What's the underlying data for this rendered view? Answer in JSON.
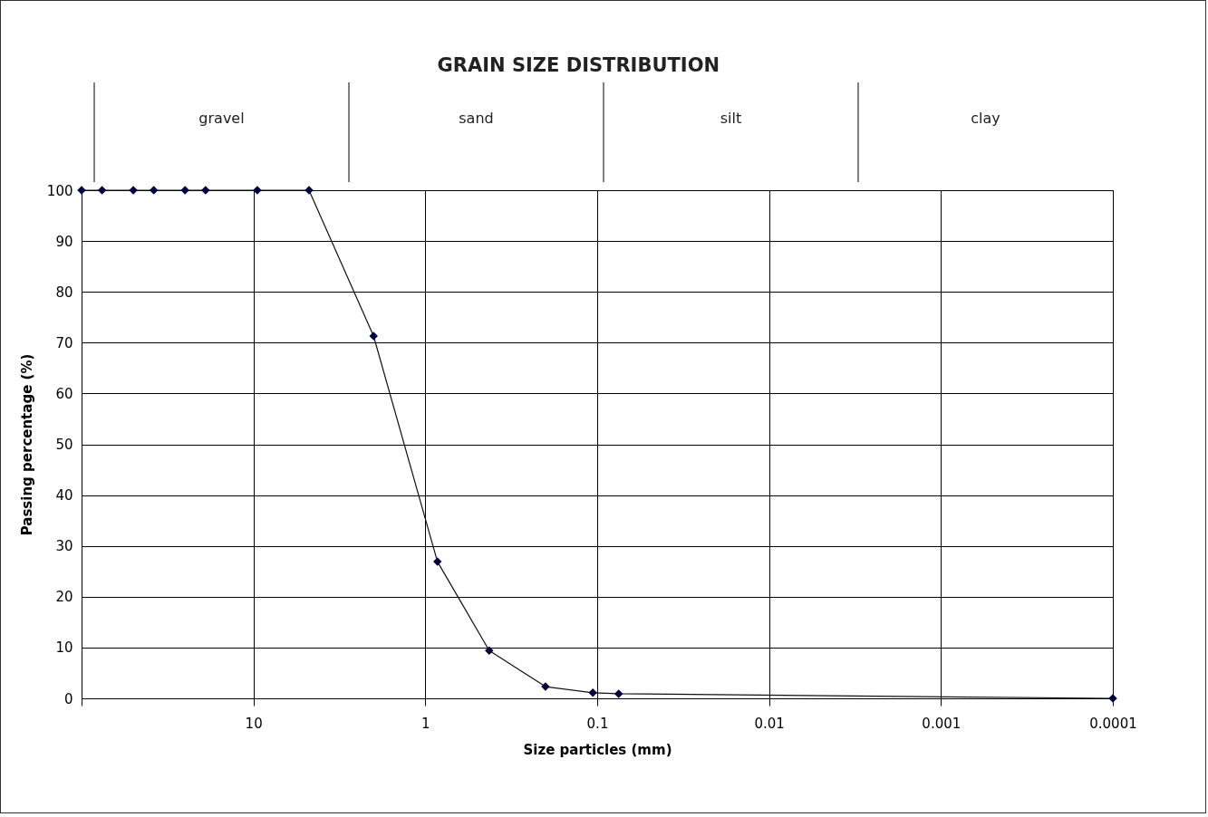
{
  "chart_data": {
    "type": "line",
    "title": "GRAIN SIZE DISTRIBUTION",
    "xlabel": "Size particles (mm)",
    "ylabel": "Passing percentage (%)",
    "x": [
      100,
      76,
      50,
      38,
      25,
      19,
      9.5,
      4.75,
      2,
      0.85,
      0.425,
      0.2,
      0.106,
      0.075,
      0.0001
    ],
    "series": [
      {
        "color": "#000040",
        "values": [
          100,
          100,
          100,
          100,
          100,
          100,
          100,
          100,
          71.3,
          26.9,
          9.4,
          2.3,
          1.1,
          0.9,
          0
        ]
      }
    ],
    "log": "x",
    "xlim": [
      100,
      0.0001
    ],
    "xticks": [
      {
        "value": 100,
        "label": null
      },
      10,
      1,
      0.1,
      0.01,
      0.001,
      0.0001
    ],
    "ylim": [
      0,
      100
    ],
    "yticks": [
      0,
      10,
      20,
      30,
      40,
      50,
      60,
      70,
      80,
      90,
      100
    ],
    "grid": true,
    "marker": "diamond",
    "line_style": "solid",
    "annotations": [
      "gravel",
      "sand",
      "silt",
      "clay"
    ]
  }
}
